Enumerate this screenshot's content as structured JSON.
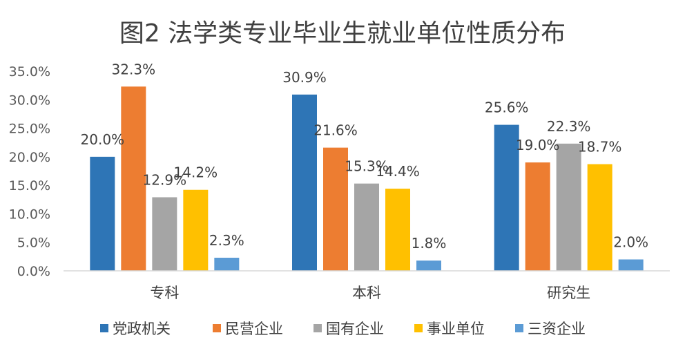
{
  "chart_data": {
    "type": "bar",
    "title": "图2 法学类专业毕业生就业单位性质分布",
    "categories": [
      "专科",
      "本科",
      "研究生"
    ],
    "series": [
      {
        "name": "党政机关",
        "color": "#2E75B6",
        "values": [
          20.0,
          30.9,
          25.6
        ],
        "labels": [
          "20.0%",
          "30.9%",
          "25.6%"
        ]
      },
      {
        "name": "民营企业",
        "color": "#ED7D31",
        "values": [
          32.3,
          21.6,
          19.0
        ],
        "labels": [
          "32.3%",
          "21.6%",
          "19.0%"
        ]
      },
      {
        "name": "国有企业",
        "color": "#A5A5A5",
        "values": [
          12.9,
          15.3,
          22.3
        ],
        "labels": [
          "12.9%",
          "15.3%",
          "22.3%"
        ]
      },
      {
        "name": "事业单位",
        "color": "#FFC000",
        "values": [
          14.2,
          14.4,
          18.7
        ],
        "labels": [
          "14.2%",
          "14.4%",
          "18.7%"
        ]
      },
      {
        "name": "三资企业",
        "color": "#5B9BD5",
        "values": [
          2.3,
          1.8,
          2.0
        ],
        "labels": [
          "2.3%",
          "1.8%",
          "2.0%"
        ]
      }
    ],
    "ylim": [
      0,
      35
    ],
    "yticks": [
      0,
      5,
      10,
      15,
      20,
      25,
      30,
      35
    ],
    "ytick_labels": [
      "0.0%",
      "5.0%",
      "10.0%",
      "15.0%",
      "20.0%",
      "25.0%",
      "30.0%",
      "35.0%"
    ],
    "grid": false,
    "legend_position": "bottom"
  }
}
